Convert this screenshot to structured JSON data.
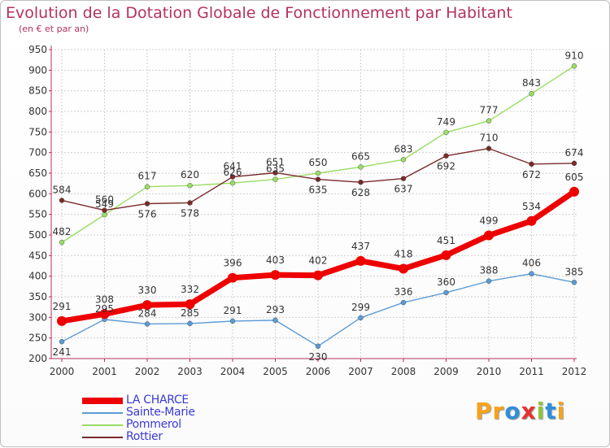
{
  "title": "Evolution de la Dotation Globale de Fonctionnement par Habitant",
  "subtitle": "(en € et par an)",
  "logo": {
    "text": "Proxiti",
    "letters": [
      {
        "ch": "P",
        "color": "#f7a21a"
      },
      {
        "ch": "r",
        "color": "#f7a21a"
      },
      {
        "ch": "o",
        "color": "#2f8fd8"
      },
      {
        "ch": "x",
        "color": "#e2332f"
      },
      {
        "ch": "i",
        "color": "#8cc63f"
      },
      {
        "ch": "t",
        "color": "#2f8fd8"
      },
      {
        "ch": "i",
        "color": "#f7a21a"
      }
    ]
  },
  "chart_data": {
    "type": "line",
    "title": "Evolution de la Dotation Globale de Fonctionnement par Habitant",
    "subtitle": "(en € et par an)",
    "x": [
      "2000",
      "2001",
      "2002",
      "2003",
      "2004",
      "2005",
      "2006",
      "2007",
      "2008",
      "2009",
      "2010",
      "2011",
      "2012"
    ],
    "ylim": [
      200,
      950
    ],
    "yticks": [
      200,
      250,
      300,
      350,
      400,
      450,
      500,
      550,
      600,
      650,
      700,
      750,
      800,
      850,
      900,
      950
    ],
    "grid": true,
    "legend_position": "bottom-left",
    "series": [
      {
        "name": "LA CHARCE",
        "color": "#ee0000",
        "width": 7,
        "label_pos": "above",
        "values": [
          291,
          308,
          330,
          332,
          396,
          403,
          402,
          437,
          418,
          451,
          499,
          534,
          605
        ]
      },
      {
        "name": "Sainte-Marie",
        "color": "#5b9bd5",
        "width": 1.4,
        "label_pos": "mixed",
        "values": [
          241,
          295,
          284,
          285,
          291,
          293,
          230,
          299,
          336,
          360,
          388,
          406,
          385
        ]
      },
      {
        "name": "Pommerol",
        "color": "#99dd66",
        "width": 1.4,
        "label_pos": "mixed",
        "values": [
          482,
          549,
          617,
          620,
          626,
          635,
          650,
          665,
          683,
          749,
          777,
          843,
          910
        ]
      },
      {
        "name": "Rottier",
        "color": "#7a2a2a",
        "width": 1.4,
        "label_pos": "mixed",
        "values": [
          584,
          560,
          576,
          578,
          641,
          651,
          635,
          628,
          637,
          692,
          710,
          672,
          674
        ]
      }
    ]
  }
}
